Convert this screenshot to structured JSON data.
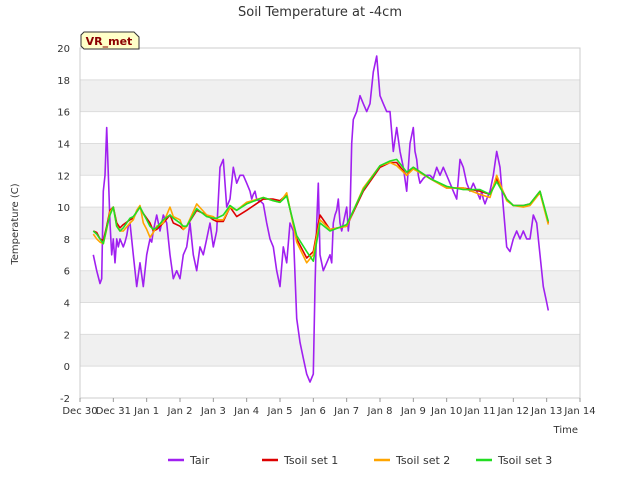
{
  "chart_data": {
    "type": "line",
    "title": "Soil Temperature at -4cm",
    "xlabel": "Time",
    "ylabel": "Temperature (C)",
    "xlim": [
      0,
      15
    ],
    "ylim": [
      -2,
      20
    ],
    "yticks": [
      -2,
      0,
      2,
      4,
      6,
      8,
      10,
      12,
      14,
      16,
      18,
      20
    ],
    "xtick_labels": [
      "Dec 30",
      "Dec 31",
      "Jan 1",
      "Jan 2",
      "Jan 3",
      "Jan 4",
      "Jan 5",
      "Jan 6",
      "Jan 7",
      "Jan 8",
      "Jan 9",
      "Jan 10",
      "Jan 11",
      "Jan 12",
      "Jan 13",
      "Jan 14"
    ],
    "x_units": "days since Dec 30",
    "station_label": "VR_met",
    "series": [
      {
        "name": "Tair",
        "color": "#a020f0",
        "x": [
          0.4,
          0.5,
          0.6,
          0.65,
          0.7,
          0.75,
          0.8,
          0.9,
          0.95,
          1.0,
          1.05,
          1.1,
          1.15,
          1.2,
          1.3,
          1.35,
          1.4,
          1.45,
          1.5,
          1.6,
          1.7,
          1.8,
          1.9,
          2.0,
          2.05,
          2.1,
          2.15,
          2.2,
          2.25,
          2.3,
          2.4,
          2.5,
          2.6,
          2.7,
          2.8,
          2.9,
          3.0,
          3.1,
          3.2,
          3.3,
          3.4,
          3.5,
          3.6,
          3.7,
          3.8,
          3.9,
          4.0,
          4.1,
          4.2,
          4.3,
          4.4,
          4.5,
          4.6,
          4.7,
          4.8,
          4.9,
          5.0,
          5.1,
          5.15,
          5.2,
          5.25,
          5.3,
          5.35,
          5.4,
          5.5,
          5.6,
          5.7,
          5.8,
          5.9,
          6.0,
          6.1,
          6.2,
          6.3,
          6.4,
          6.5,
          6.6,
          6.7,
          6.8,
          6.9,
          7.0,
          7.05,
          7.1,
          7.15,
          7.2,
          7.3,
          7.4,
          7.5,
          7.55,
          7.6,
          7.65,
          7.7,
          7.75,
          7.8,
          7.85,
          7.9,
          8.0,
          8.05,
          8.1,
          8.15,
          8.2,
          8.3,
          8.35,
          8.4,
          8.5,
          8.6,
          8.7,
          8.8,
          8.9,
          9.0,
          9.1,
          9.2,
          9.3,
          9.4,
          9.5,
          9.6,
          9.7,
          9.8,
          9.9,
          10.0,
          10.05,
          10.1,
          10.15,
          10.2,
          10.3,
          10.4,
          10.5,
          10.6,
          10.7,
          10.8,
          10.9,
          11.0,
          11.1,
          11.2,
          11.3,
          11.4,
          11.5,
          11.6,
          11.7,
          11.8,
          11.9,
          12.0,
          12.05,
          12.1,
          12.15,
          12.2,
          12.3,
          12.4,
          12.5,
          12.6,
          12.7,
          12.8,
          12.9,
          13.0,
          13.1,
          13.2,
          13.3,
          13.4,
          13.5,
          13.6,
          13.7,
          13.8,
          13.9,
          14.0,
          14.05
        ],
        "y": [
          7.0,
          6.0,
          5.2,
          5.5,
          11.0,
          12.0,
          15.0,
          9.0,
          7.0,
          8.0,
          6.5,
          8.0,
          7.5,
          8.0,
          7.5,
          7.8,
          8.2,
          8.8,
          9.0,
          7.0,
          5.0,
          6.5,
          5.0,
          7.0,
          7.5,
          8.0,
          7.8,
          8.5,
          9.0,
          9.5,
          8.5,
          9.5,
          9.0,
          7.0,
          5.5,
          6.0,
          5.5,
          7.0,
          7.5,
          9.0,
          7.0,
          6.0,
          7.5,
          7.0,
          8.0,
          9.0,
          7.5,
          8.5,
          12.5,
          13.0,
          10.0,
          10.5,
          12.5,
          11.5,
          12.0,
          12.0,
          11.5,
          11.0,
          10.5,
          10.8,
          11.0,
          10.5,
          10.4,
          10.4,
          10.2,
          9.0,
          8.0,
          7.5,
          6.0,
          5.0,
          7.5,
          6.5,
          9.0,
          8.5,
          3.0,
          1.5,
          0.5,
          -0.5,
          -1.0,
          -0.5,
          5.0,
          9.0,
          11.5,
          7.0,
          6.0,
          6.5,
          7.0,
          6.5,
          9.0,
          9.5,
          9.8,
          10.5,
          9.0,
          8.5,
          9.0,
          10.0,
          8.5,
          9.5,
          14.0,
          15.5,
          16.0,
          16.5,
          17.0,
          16.5,
          16.0,
          16.5,
          18.5,
          19.5,
          17.0,
          16.5,
          16.0,
          16.0,
          13.5,
          15.0,
          13.5,
          12.5,
          11.0,
          14.0,
          15.0,
          13.5,
          13.0,
          12.0,
          11.5,
          11.8,
          12.0,
          12.0,
          11.8,
          12.5,
          12.0,
          12.5,
          12.0,
          11.5,
          11.0,
          10.5,
          13.0,
          12.5,
          11.5,
          11.0,
          11.5,
          11.0,
          10.5,
          11.0,
          10.5,
          10.2,
          10.5,
          11.0,
          12.0,
          13.5,
          12.5,
          10.0,
          7.5,
          7.2,
          8.0,
          8.5,
          8.0,
          8.5,
          8.0,
          8.0,
          9.5,
          9.0,
          7.0,
          5.0,
          4.0,
          3.5
        ]
      },
      {
        "name": "Tsoil set 1",
        "color": "#dd0000",
        "x": [
          0.4,
          0.5,
          0.6,
          0.7,
          0.8,
          0.9,
          1.0,
          1.1,
          1.2,
          1.3,
          1.5,
          1.6,
          1.7,
          1.8,
          1.9,
          2.1,
          2.2,
          2.3,
          2.5,
          2.7,
          2.8,
          3.0,
          3.1,
          3.2,
          3.5,
          3.8,
          4.0,
          4.1,
          4.3,
          4.5,
          4.7,
          5.0,
          5.5,
          5.8,
          6.0,
          6.2,
          6.5,
          6.8,
          7.0,
          7.2,
          7.5,
          8.0,
          8.5,
          9.0,
          9.3,
          9.5,
          9.8,
          10.0,
          10.5,
          11.0,
          11.5,
          12.0,
          12.3,
          12.5,
          12.8,
          13.0,
          13.3,
          13.5,
          13.8,
          14.05
        ],
        "y": [
          8.5,
          8.4,
          8.0,
          7.9,
          8.8,
          9.8,
          10.0,
          9.0,
          8.7,
          8.9,
          9.2,
          9.3,
          9.7,
          10.0,
          9.6,
          9.0,
          8.5,
          8.6,
          9.0,
          9.5,
          9.0,
          8.8,
          8.6,
          8.8,
          9.8,
          9.5,
          9.2,
          9.1,
          9.1,
          10.0,
          9.4,
          9.8,
          10.5,
          10.5,
          10.4,
          10.8,
          8.0,
          6.8,
          7.2,
          9.5,
          8.6,
          8.8,
          11.0,
          12.5,
          12.8,
          12.8,
          12.0,
          12.5,
          11.8,
          11.2,
          11.2,
          11.0,
          10.8,
          11.8,
          10.5,
          10.1,
          10.1,
          10.2,
          11.0,
          9.0
        ]
      },
      {
        "name": "Tsoil set 2",
        "color": "#ffa500",
        "x": [
          0.4,
          0.5,
          0.6,
          0.7,
          0.8,
          0.9,
          1.0,
          1.1,
          1.2,
          1.3,
          1.5,
          1.6,
          1.7,
          1.8,
          1.9,
          2.0,
          2.1,
          2.2,
          2.3,
          2.5,
          2.7,
          2.8,
          3.0,
          3.1,
          3.2,
          3.5,
          3.8,
          4.0,
          4.1,
          4.3,
          4.5,
          4.7,
          5.0,
          5.5,
          5.8,
          6.0,
          6.2,
          6.5,
          6.8,
          7.0,
          7.2,
          7.5,
          8.0,
          8.5,
          9.0,
          9.3,
          9.5,
          9.8,
          10.0,
          10.5,
          11.0,
          11.5,
          12.0,
          12.3,
          12.5,
          12.8,
          13.0,
          13.3,
          13.5,
          13.8,
          14.05
        ],
        "y": [
          8.3,
          8.0,
          7.8,
          7.7,
          8.6,
          9.7,
          10.0,
          8.8,
          8.5,
          8.5,
          9.0,
          9.2,
          9.8,
          10.1,
          9.0,
          8.6,
          8.1,
          8.4,
          8.8,
          9.0,
          10.0,
          9.4,
          9.2,
          8.6,
          8.8,
          10.2,
          9.5,
          9.4,
          9.2,
          9.2,
          10.0,
          9.8,
          10.3,
          10.6,
          10.4,
          10.3,
          10.9,
          7.8,
          6.5,
          7.0,
          9.2,
          8.6,
          8.8,
          11.2,
          12.6,
          12.8,
          12.6,
          12.0,
          12.4,
          11.8,
          11.2,
          11.2,
          10.8,
          10.6,
          12.0,
          10.4,
          10.1,
          10.0,
          10.1,
          10.9,
          8.9
        ]
      },
      {
        "name": "Tsoil set 3",
        "color": "#22dd22",
        "x": [
          0.4,
          0.5,
          0.6,
          0.7,
          0.8,
          0.9,
          1.0,
          1.1,
          1.2,
          1.3,
          1.5,
          1.6,
          1.7,
          1.8,
          1.9,
          2.0,
          2.1,
          2.2,
          2.3,
          2.5,
          2.7,
          2.8,
          3.0,
          3.1,
          3.2,
          3.5,
          3.8,
          4.0,
          4.1,
          4.3,
          4.5,
          4.7,
          5.0,
          5.5,
          5.8,
          6.0,
          6.2,
          6.5,
          6.8,
          7.0,
          7.2,
          7.5,
          8.0,
          8.5,
          9.0,
          9.3,
          9.5,
          9.8,
          10.0,
          10.5,
          11.0,
          11.5,
          12.0,
          12.3,
          12.5,
          12.8,
          13.0,
          13.3,
          13.5,
          13.8,
          14.05
        ],
        "y": [
          8.5,
          8.3,
          8.0,
          7.7,
          8.7,
          9.5,
          10.0,
          8.8,
          8.5,
          8.7,
          9.3,
          9.4,
          9.7,
          10.0,
          9.6,
          9.2,
          8.8,
          8.6,
          8.7,
          9.2,
          9.5,
          9.3,
          9.0,
          8.8,
          8.8,
          9.9,
          9.4,
          9.3,
          9.3,
          9.5,
          10.1,
          9.8,
          10.2,
          10.6,
          10.4,
          10.3,
          10.7,
          8.2,
          7.2,
          6.6,
          9.0,
          8.5,
          8.9,
          11.1,
          12.6,
          12.9,
          13.0,
          12.2,
          12.5,
          11.8,
          11.3,
          11.1,
          11.1,
          10.8,
          11.6,
          10.5,
          10.1,
          10.1,
          10.2,
          11.0,
          9.1
        ]
      }
    ]
  }
}
